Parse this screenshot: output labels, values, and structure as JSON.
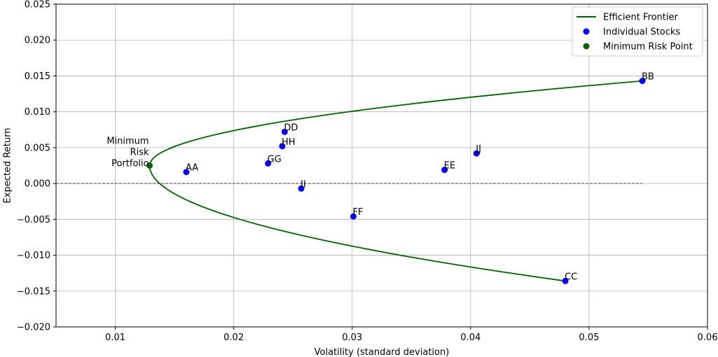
{
  "chart_data": {
    "type": "scatter",
    "xlabel": "Volatility (standard deviation)",
    "ylabel": "Expected Return",
    "xlim": [
      0.005,
      0.06
    ],
    "ylim": [
      -0.02,
      0.025
    ],
    "x_ticks": [
      "0.01",
      "0.02",
      "0.03",
      "0.04",
      "0.05",
      "0.06"
    ],
    "x_tick_values": [
      0.01,
      0.02,
      0.03,
      0.04,
      0.05,
      0.06
    ],
    "y_ticks": [
      "−0.020",
      "−0.015",
      "−0.010",
      "−0.005",
      "0.000",
      "0.005",
      "0.010",
      "0.015",
      "0.020",
      "0.025"
    ],
    "y_tick_values": [
      -0.02,
      -0.015,
      -0.01,
      -0.005,
      0.0,
      0.005,
      0.01,
      0.015,
      0.02,
      0.025
    ],
    "grid": true,
    "legend_position": "top-right",
    "legend": [
      {
        "label": "Efficient Frontier",
        "kind": "line",
        "color": "#006400"
      },
      {
        "label": "Individual Stocks",
        "kind": "dot",
        "color": "#0000ff"
      },
      {
        "label": "Minimum Risk Point",
        "kind": "dot",
        "color": "#006400"
      }
    ],
    "frontier": {
      "name": "Efficient Frontier",
      "color": "#006400",
      "min_vol": 0.0129,
      "min_ret": 0.0025,
      "ret_range": [
        -0.0136,
        0.0143
      ],
      "points": [
        [
          0.0545,
          0.0143
        ],
        [
          0.0461,
          0.0123
        ],
        [
          0.0382,
          0.0104
        ],
        [
          0.0307,
          0.0085
        ],
        [
          0.024,
          0.0066
        ],
        [
          0.0186,
          0.0047
        ],
        [
          0.015,
          0.0033
        ],
        [
          0.0129,
          0.0025
        ],
        [
          0.0136,
          0.0003
        ],
        [
          0.0166,
          -0.002
        ],
        [
          0.022,
          -0.0045
        ],
        [
          0.0284,
          -0.007
        ],
        [
          0.0355,
          -0.0095
        ],
        [
          0.043,
          -0.012
        ],
        [
          0.048,
          -0.0136
        ]
      ]
    },
    "zero_line": {
      "y": 0.0,
      "x_range": [
        0.005,
        0.0545
      ],
      "color": "#808080",
      "style": "dashed"
    },
    "stocks": [
      {
        "label": "AA",
        "x": 0.016,
        "y": 0.0016
      },
      {
        "label": "BB",
        "x": 0.0545,
        "y": 0.0143
      },
      {
        "label": "CC",
        "x": 0.048,
        "y": -0.0136
      },
      {
        "label": "DD",
        "x": 0.0243,
        "y": 0.0072
      },
      {
        "label": "EE",
        "x": 0.0378,
        "y": 0.0019
      },
      {
        "label": "FF",
        "x": 0.0301,
        "y": -0.0046
      },
      {
        "label": "GG",
        "x": 0.0229,
        "y": 0.0028
      },
      {
        "label": "HH",
        "x": 0.0241,
        "y": 0.0052
      },
      {
        "label": "II",
        "x": 0.0257,
        "y": -0.0007
      },
      {
        "label": "JJ",
        "x": 0.0405,
        "y": 0.0042
      }
    ],
    "stock_color": "#0000ff",
    "min_risk_point": {
      "x": 0.0129,
      "y": 0.0025,
      "color": "#006400",
      "label_lines": [
        "Minimum",
        "Risk",
        "Portfolio"
      ]
    }
  }
}
